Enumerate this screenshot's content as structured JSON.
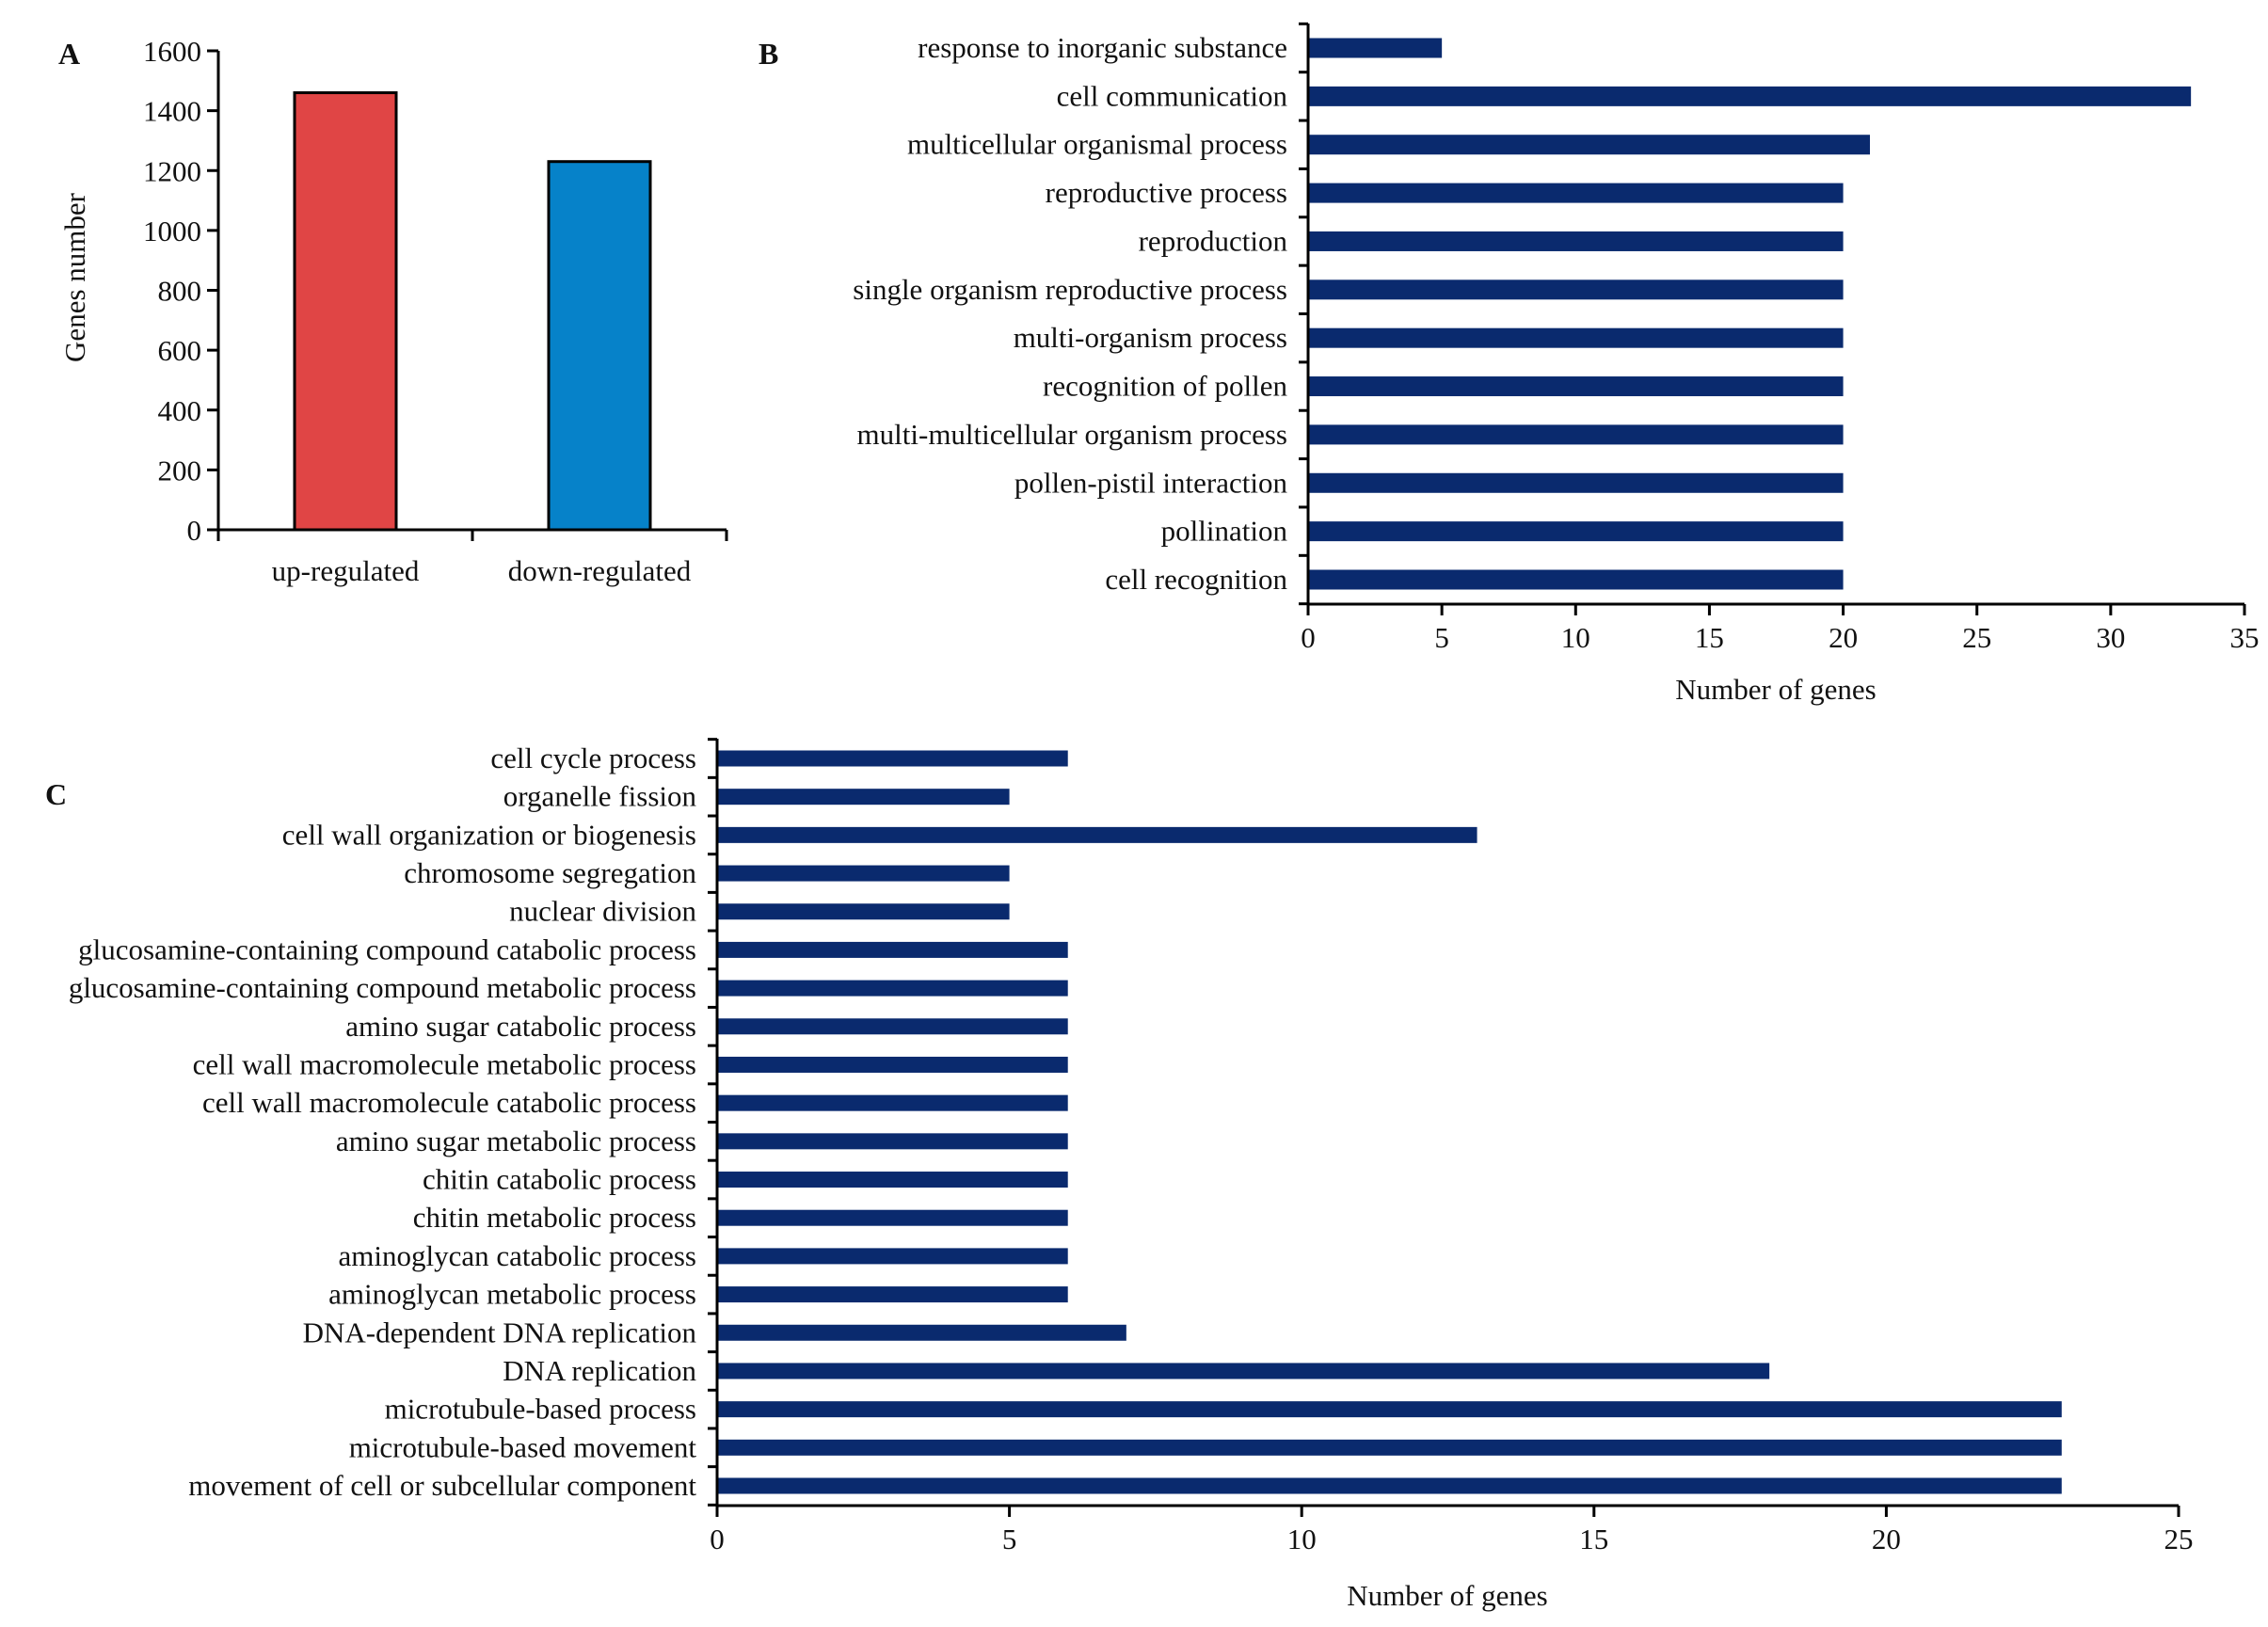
{
  "chart_data": [
    {
      "panel": "A",
      "type": "bar",
      "orientation": "vertical",
      "categories": [
        "up-regulated",
        "down-regulated"
      ],
      "values": [
        1460,
        1230
      ],
      "colors": [
        "#E04545",
        "#0682C9"
      ],
      "ylabel": "Genes number",
      "xlabel": "",
      "ylim": [
        0,
        1600
      ],
      "yticks": [
        0,
        200,
        400,
        600,
        800,
        1000,
        1200,
        1400,
        1600
      ]
    },
    {
      "panel": "B",
      "type": "bar",
      "orientation": "horizontal",
      "categories": [
        "response to inorganic substance",
        "cell communication",
        "multicellular organismal process",
        "reproductive process",
        "reproduction",
        "single organism reproductive process",
        "multi-organism process",
        "recognition of pollen",
        "multi-multicellular organism process",
        "pollen-pistil interaction",
        "pollination",
        "cell recognition"
      ],
      "values": [
        5,
        33,
        21,
        20,
        20,
        20,
        20,
        20,
        20,
        20,
        20,
        20
      ],
      "color": "#0A2A6E",
      "xlabel": "Number of genes",
      "xlim": [
        0,
        35
      ],
      "xticks": [
        0,
        5,
        10,
        15,
        20,
        25,
        30,
        35
      ]
    },
    {
      "panel": "C",
      "type": "bar",
      "orientation": "horizontal",
      "categories": [
        "cell cycle process",
        "organelle fission",
        "cell wall organization or biogenesis",
        "chromosome segregation",
        "nuclear division",
        "glucosamine-containing compound catabolic process",
        "glucosamine-containing compound metabolic process",
        "amino sugar catabolic process",
        "cell wall macromolecule metabolic process",
        "cell wall macromolecule catabolic process",
        "amino sugar metabolic process",
        "chitin catabolic process",
        "chitin metabolic process",
        "aminoglycan catabolic process",
        "aminoglycan metabolic process",
        "DNA-dependent DNA replication",
        "DNA replication",
        "microtubule-based process",
        "microtubule-based movement",
        "movement of cell or subcellular component"
      ],
      "values": [
        6,
        5,
        13,
        5,
        5,
        6,
        6,
        6,
        6,
        6,
        6,
        6,
        6,
        6,
        6,
        7,
        18,
        23,
        23,
        23
      ],
      "color": "#0A2A6E",
      "xlabel": "Number of genes",
      "xlim": [
        0,
        25
      ],
      "xticks": [
        0,
        5,
        10,
        15,
        20,
        25
      ]
    }
  ]
}
